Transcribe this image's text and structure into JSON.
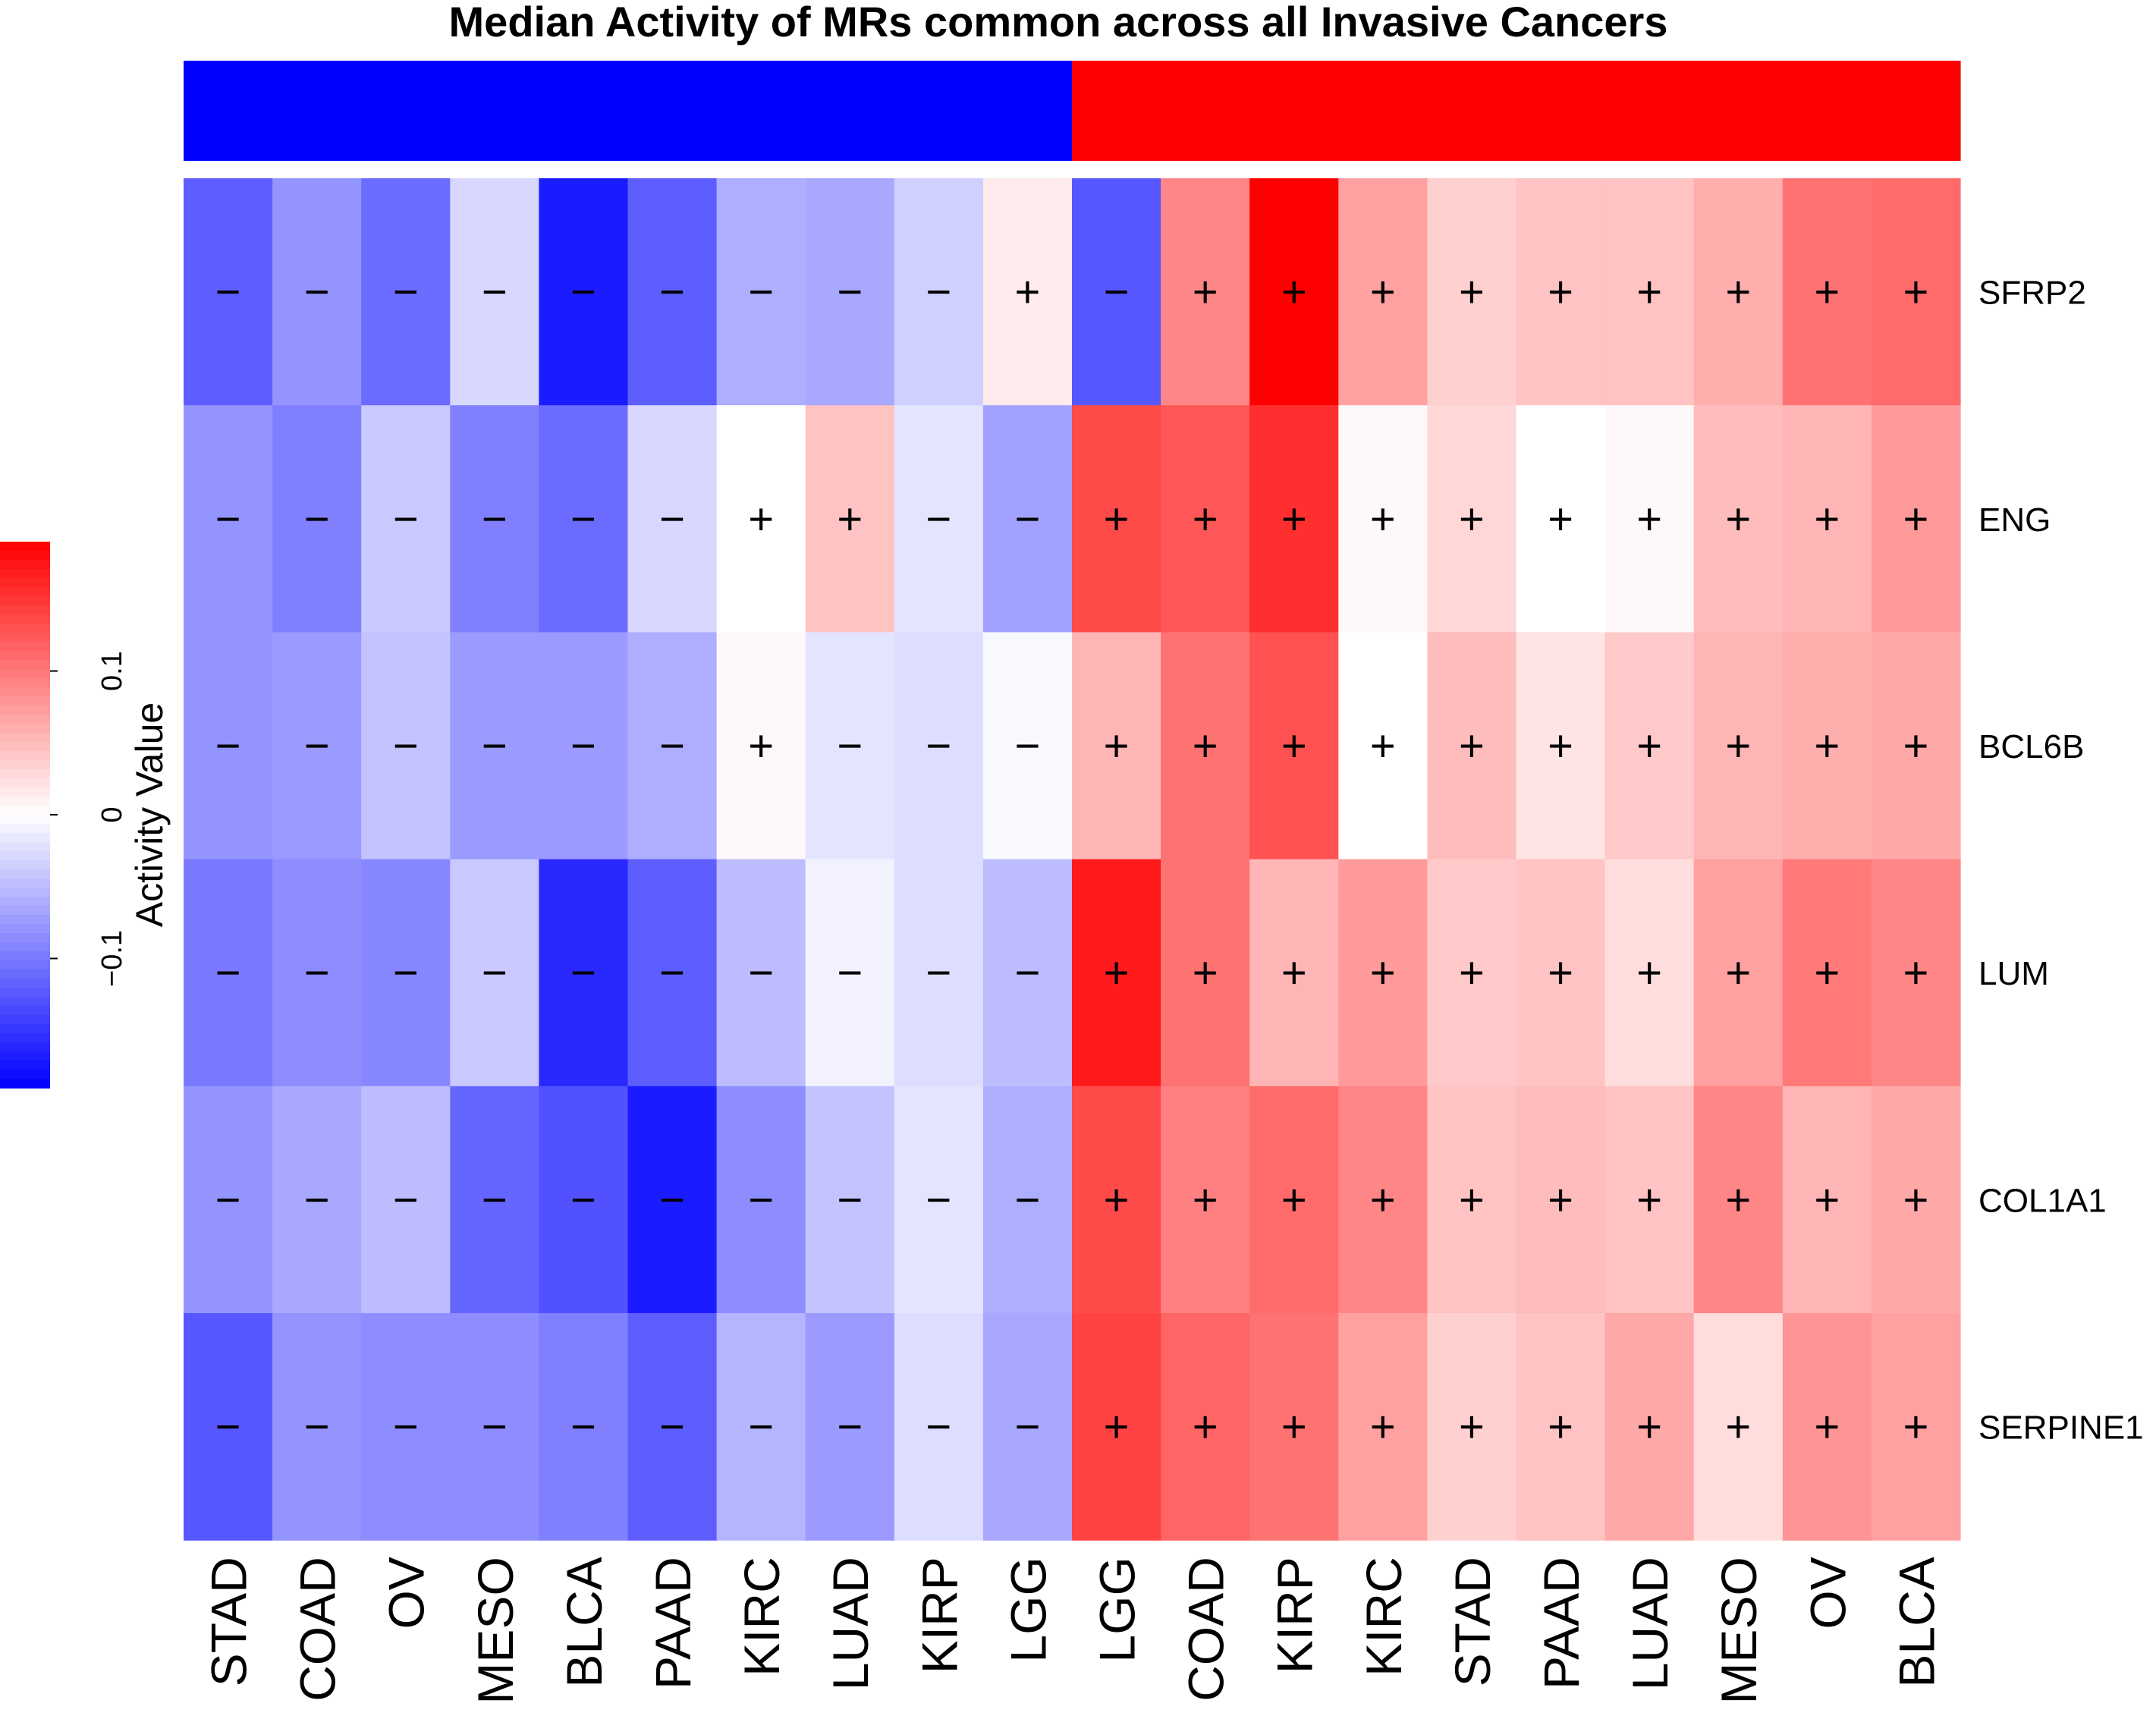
{
  "chart_data": {
    "type": "heatmap",
    "title": "Median Activity of MRs common across all Invasive Cancers",
    "group_colors": [
      "#0000FF",
      "#FF0000"
    ],
    "column_groups": [
      0,
      0,
      0,
      0,
      0,
      0,
      0,
      0,
      0,
      0,
      1,
      1,
      1,
      1,
      1,
      1,
      1,
      1,
      1,
      1
    ],
    "columns": [
      "STAD",
      "COAD",
      "OV",
      "MESO",
      "BLCA",
      "PAAD",
      "KIRC",
      "LUAD",
      "KIRP",
      "LGG",
      "LGG",
      "COAD",
      "KIRP",
      "KIRC",
      "STAD",
      "PAAD",
      "LUAD",
      "MESO",
      "OV",
      "BLCA"
    ],
    "rows": [
      "SFRP2",
      "ENG",
      "BCL6B",
      "LUM",
      "COL1A1",
      "SERPINE1"
    ],
    "values": [
      [
        -0.12,
        -0.08,
        -0.11,
        -0.03,
        -0.17,
        -0.12,
        -0.06,
        -0.065,
        -0.035,
        0.015,
        -0.125,
        0.09,
        0.19,
        0.07,
        0.035,
        0.045,
        0.045,
        0.06,
        0.105,
        0.11
      ],
      [
        -0.08,
        -0.095,
        -0.04,
        -0.095,
        -0.11,
        -0.03,
        0.0,
        0.045,
        -0.02,
        -0.07,
        0.135,
        0.125,
        0.155,
        0.005,
        0.03,
        0.0,
        0.005,
        0.05,
        0.055,
        0.075
      ],
      [
        -0.08,
        -0.075,
        -0.045,
        -0.075,
        -0.075,
        -0.06,
        0.005,
        -0.02,
        -0.025,
        -0.005,
        0.055,
        0.105,
        0.13,
        0.0,
        0.05,
        0.02,
        0.04,
        0.055,
        0.06,
        0.065
      ],
      [
        -0.1,
        -0.085,
        -0.09,
        -0.04,
        -0.16,
        -0.12,
        -0.05,
        -0.01,
        -0.025,
        -0.05,
        0.17,
        0.105,
        0.055,
        0.075,
        0.04,
        0.045,
        0.025,
        0.07,
        0.1,
        0.09
      ],
      [
        -0.08,
        -0.065,
        -0.05,
        -0.115,
        -0.13,
        -0.17,
        -0.085,
        -0.045,
        -0.02,
        -0.06,
        0.135,
        0.095,
        0.11,
        0.09,
        0.045,
        0.05,
        0.045,
        0.09,
        0.055,
        0.065
      ],
      [
        -0.125,
        -0.08,
        -0.085,
        -0.085,
        -0.095,
        -0.12,
        -0.055,
        -0.075,
        -0.025,
        -0.065,
        0.14,
        0.115,
        0.105,
        0.07,
        0.035,
        0.045,
        0.065,
        0.025,
        0.08,
        0.07
      ]
    ],
    "signs": [
      [
        "−",
        "−",
        "−",
        "−",
        "−",
        "−",
        "−",
        "−",
        "−",
        "+",
        "−",
        "+",
        "+",
        "+",
        "+",
        "+",
        "+",
        "+",
        "+",
        "+"
      ],
      [
        "−",
        "−",
        "−",
        "−",
        "−",
        "−",
        "+",
        "+",
        "−",
        "−",
        "+",
        "+",
        "+",
        "+",
        "+",
        "+",
        "+",
        "+",
        "+",
        "+"
      ],
      [
        "−",
        "−",
        "−",
        "−",
        "−",
        "−",
        "+",
        "−",
        "−",
        "−",
        "+",
        "+",
        "+",
        "+",
        "+",
        "+",
        "+",
        "+",
        "+",
        "+"
      ],
      [
        "−",
        "−",
        "−",
        "−",
        "−",
        "−",
        "−",
        "−",
        "−",
        "−",
        "+",
        "+",
        "+",
        "+",
        "+",
        "+",
        "+",
        "+",
        "+",
        "+"
      ],
      [
        "−",
        "−",
        "−",
        "−",
        "−",
        "−",
        "−",
        "−",
        "−",
        "−",
        "+",
        "+",
        "+",
        "+",
        "+",
        "+",
        "+",
        "+",
        "+",
        "+"
      ],
      [
        "−",
        "−",
        "−",
        "−",
        "−",
        "−",
        "−",
        "−",
        "−",
        "−",
        "+",
        "+",
        "+",
        "+",
        "+",
        "+",
        "+",
        "+",
        "+",
        "+"
      ]
    ],
    "colorscale": {
      "min": -0.19,
      "max": 0.19,
      "low": "#0000FF",
      "mid": "#FFFFFF",
      "high": "#FF0000"
    },
    "legend": {
      "label": "Activity Value",
      "ticks": [
        -0.1,
        0,
        0.1
      ],
      "tick_labels": [
        "−0.1",
        "0",
        "0.1"
      ]
    }
  }
}
